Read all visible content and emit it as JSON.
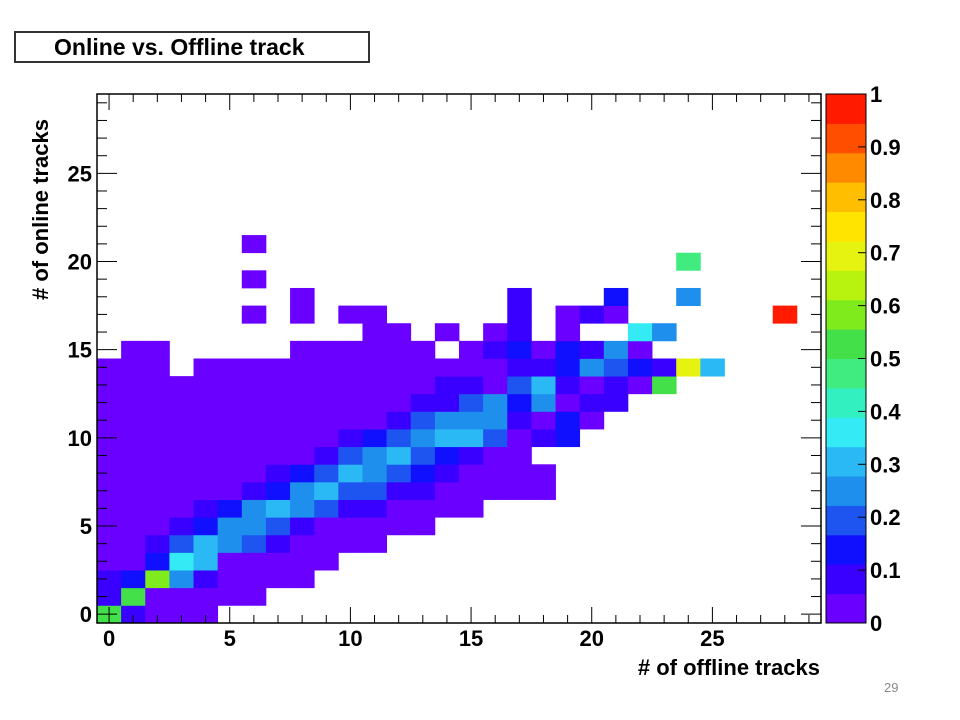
{
  "page_number": "29",
  "chart_data": {
    "type": "heatmap",
    "title": "Online vs. Offline track",
    "xlabel": "# of offline tracks",
    "ylabel": "# of online tracks",
    "xlim": [
      -0.5,
      29.5
    ],
    "ylim": [
      -0.5,
      29.5
    ],
    "x_ticks": [
      0,
      5,
      10,
      15,
      20,
      25
    ],
    "y_ticks": [
      0,
      5,
      10,
      15,
      20,
      25
    ],
    "z_range": [
      0,
      1
    ],
    "z_ticks": [
      "0",
      "0.1",
      "0.2",
      "0.3",
      "0.4",
      "0.5",
      "0.6",
      "0.7",
      "0.8",
      "0.9",
      "1"
    ],
    "palette": [
      "#6a00ff",
      "#3a00ff",
      "#1010ff",
      "#1e55f0",
      "#1f8fee",
      "#2ab9f5",
      "#33eaf5",
      "#33f0c0",
      "#40ec80",
      "#44e04a",
      "#7fea1c",
      "#b8f20f",
      "#e6f20f",
      "#ffe400",
      "#ffbe00",
      "#ff8a00",
      "#ff4e00",
      "#ff1a00"
    ],
    "grid": false,
    "colorbar": "right",
    "rows": [
      {
        "y": 0,
        "start": 0,
        "values": [
          0.55,
          0.1,
          0.02,
          0.02,
          0.02
        ]
      },
      {
        "y": 1,
        "start": 0,
        "values": [
          0.08,
          0.55,
          0.05,
          0.03,
          0.02,
          0.02,
          0.02
        ]
      },
      {
        "y": 2,
        "start": 0,
        "values": [
          0.1,
          0.15,
          0.6,
          0.27,
          0.1,
          0.02,
          0.02,
          0.02,
          0.02
        ]
      },
      {
        "y": 3,
        "start": 0,
        "values": [
          0.02,
          0.05,
          0.15,
          0.35,
          0.3,
          0.05,
          0.05,
          0.02,
          0.02,
          0.02
        ]
      },
      {
        "y": 4,
        "start": 0,
        "values": [
          0.02,
          0.02,
          0.1,
          0.2,
          0.32,
          0.25,
          0.17,
          0.1,
          0.02,
          0.02,
          0.02,
          0.02
        ]
      },
      {
        "y": 5,
        "start": 0,
        "values": [
          0.02,
          0.02,
          0.02,
          0.1,
          0.15,
          0.25,
          0.25,
          0.2,
          0.1,
          0.05,
          0.02,
          0.02,
          0.02,
          0.02
        ]
      },
      {
        "y": 6,
        "start": 0,
        "values": [
          0.02,
          0.02,
          0.02,
          0.02,
          0.1,
          0.15,
          0.25,
          0.3,
          0.27,
          0.2,
          0.1,
          0.08,
          0.02,
          0.02,
          0.02,
          0.02
        ]
      },
      {
        "y": 7,
        "start": 0,
        "values": [
          0.02,
          0.02,
          0.02,
          0.02,
          0.02,
          0.05,
          0.1,
          0.15,
          0.27,
          0.3,
          0.2,
          0.2,
          0.1,
          0.08,
          0.05,
          0.02,
          0.02,
          0.02,
          0.05
        ]
      },
      {
        "y": 8,
        "start": 0,
        "values": [
          0.02,
          0.02,
          0.02,
          0.02,
          0.02,
          0.02,
          0.05,
          0.08,
          0.15,
          0.2,
          0.28,
          0.25,
          0.2,
          0.15,
          0.1,
          0.05,
          0.02,
          0.02,
          0.02
        ]
      },
      {
        "y": 9,
        "start": 0,
        "values": [
          0.02,
          0.02,
          0.02,
          0.02,
          0.02,
          0.02,
          0.02,
          0.02,
          0.05,
          0.1,
          0.22,
          0.25,
          0.28,
          0.2,
          0.12,
          0.08,
          0.05,
          0.02
        ]
      },
      {
        "y": 10,
        "start": 0,
        "values": [
          0.02,
          0.02,
          0.02,
          0.02,
          0.02,
          0.02,
          0.02,
          0.02,
          0.02,
          0.05,
          0.08,
          0.15,
          0.22,
          0.25,
          0.28,
          0.33,
          0.2,
          0.05,
          0.1,
          0.15,
          null,
          null,
          null,
          null,
          null,
          null
        ]
      },
      {
        "y": 11,
        "start": 0,
        "values": [
          0.02,
          0.02,
          0.02,
          0.02,
          0.02,
          0.02,
          0.02,
          0.02,
          0.02,
          0.02,
          0.02,
          0.05,
          0.1,
          0.22,
          0.25,
          0.25,
          0.25,
          0.08,
          0.02,
          0.15,
          0.02,
          null,
          null,
          null,
          null,
          null
        ]
      },
      {
        "y": 12,
        "start": 0,
        "values": [
          0.02,
          0.02,
          0.02,
          0.02,
          0.02,
          0.02,
          0.02,
          0.02,
          0.02,
          0.02,
          0.02,
          0.02,
          0.02,
          0.08,
          0.1,
          0.2,
          0.25,
          0.15,
          0.25,
          0.05,
          0.1,
          0.08
        ]
      },
      {
        "y": 13,
        "start": 0,
        "values": [
          0.02,
          0.02,
          0.02,
          0.02,
          0.02,
          0.02,
          0.02,
          0.02,
          0.02,
          0.02,
          0.02,
          0.02,
          0.02,
          0.02,
          0.08,
          0.1,
          0.05,
          0.2,
          0.3,
          0.1,
          0.05,
          0.08,
          0.05,
          0.55
        ]
      },
      {
        "y": 14,
        "start": 0,
        "values": [
          0.02,
          0.02,
          0.02,
          null,
          0.02,
          0.02,
          0.02,
          0.02,
          0.02,
          0.02,
          0.02,
          0.02,
          0.02,
          0.02,
          0.02,
          0.02,
          0.05,
          0.08,
          0.1,
          0.15,
          0.25,
          0.2,
          0.15,
          0.1,
          0.7,
          0.3
        ]
      },
      {
        "y": 15,
        "start": 1,
        "values": [
          0.02,
          0.02,
          null,
          null,
          null,
          null,
          null,
          0.02,
          0.02,
          0.02,
          0.02,
          0.02,
          0.02,
          null,
          0.02,
          0.1,
          0.15,
          0.02,
          0.15,
          0.1,
          0.25,
          0.05
        ]
      },
      {
        "y": 16,
        "start": 11,
        "values": [
          0.02,
          0.02,
          null,
          0.02,
          null,
          0.02,
          0.08,
          null,
          0.05,
          null,
          null,
          0.35,
          0.25
        ]
      },
      {
        "y": 17,
        "start": 6,
        "values": [
          0.02,
          null,
          0.02,
          null,
          0.02,
          0.02,
          null,
          null,
          null,
          null,
          null,
          0.1,
          null,
          0.02,
          0.08,
          0.02,
          null,
          null,
          null,
          null,
          null,
          null,
          0.97
        ]
      },
      {
        "y": 18,
        "start": 8,
        "values": [
          0.02,
          null,
          null,
          null,
          null,
          null,
          null,
          null,
          null,
          0.1,
          null,
          null,
          null,
          0.15,
          null,
          null,
          0.25
        ]
      },
      {
        "y": 19,
        "start": 6,
        "values": [
          0.02
        ]
      },
      {
        "y": 20,
        "start": 24,
        "values": [
          0.45
        ]
      },
      {
        "y": 21,
        "start": 6,
        "values": [
          0.02
        ]
      }
    ]
  }
}
